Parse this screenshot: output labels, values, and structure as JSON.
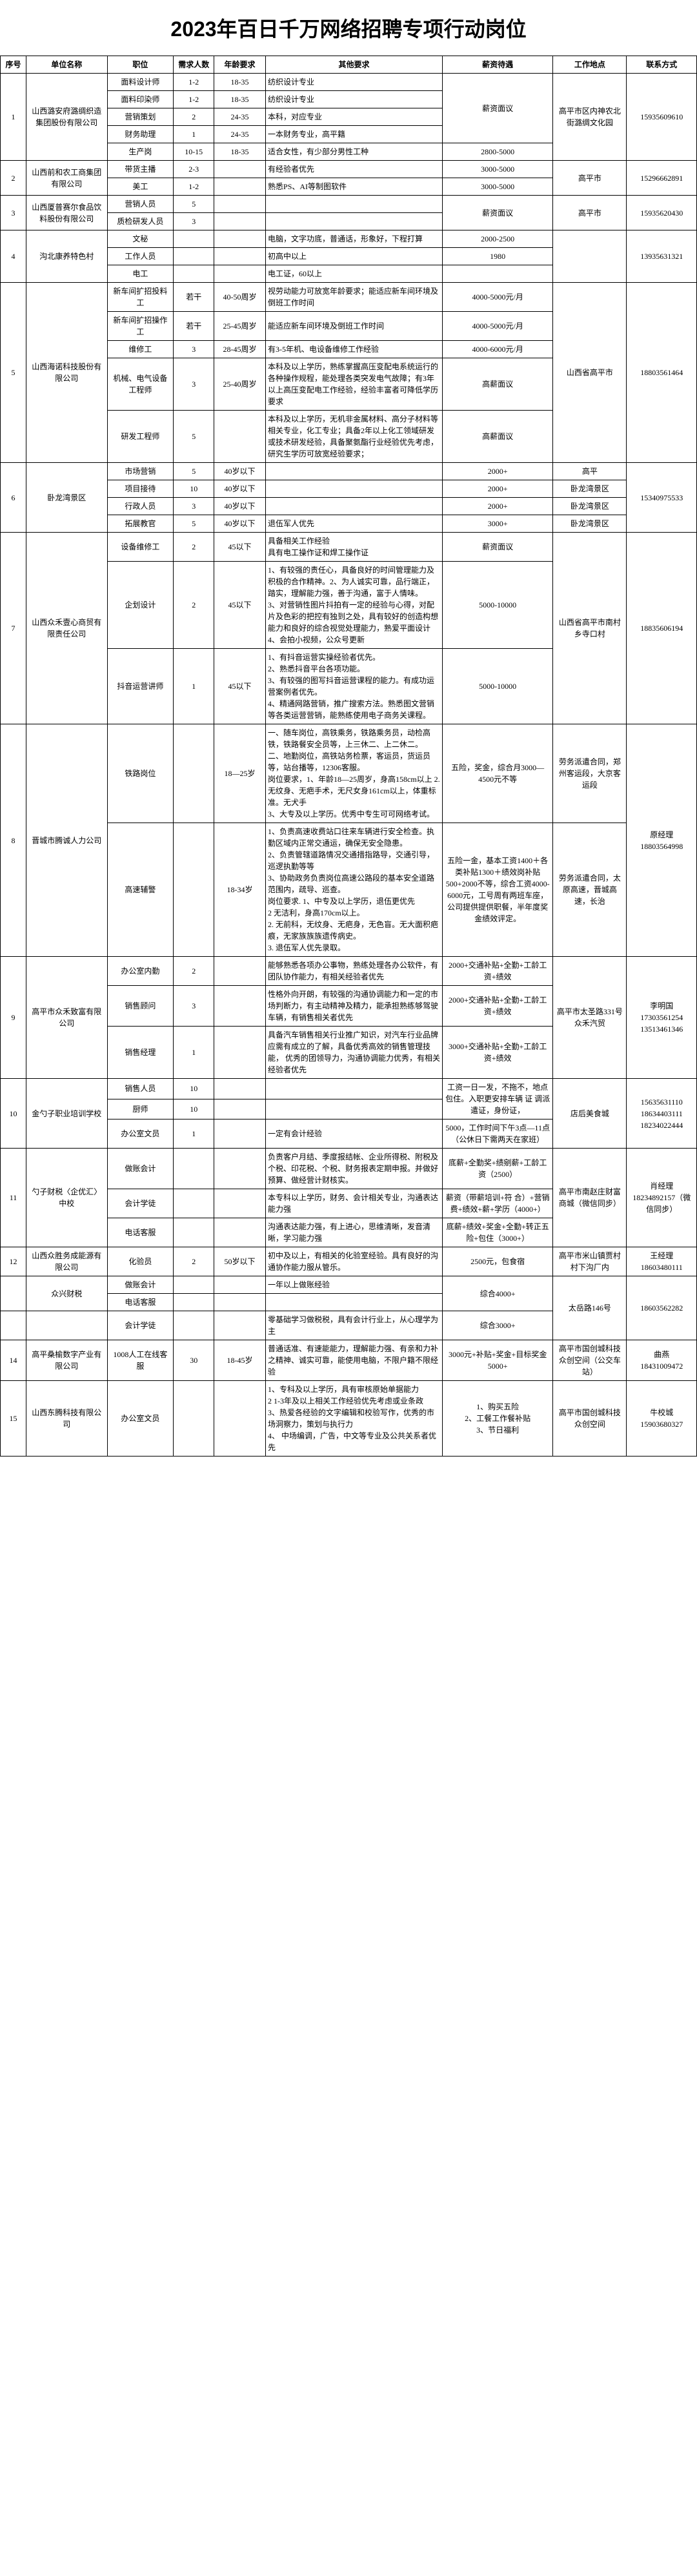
{
  "title": "2023年百日千万网络招聘专项行动岗位",
  "headers": {
    "seq": "序号",
    "company": "单位名称",
    "position": "职位",
    "count": "需求人数",
    "age": "年龄要求",
    "other": "其他要求",
    "salary": "薪资待遇",
    "location": "工作地点",
    "contact": "联系方式"
  },
  "rows": [
    {
      "seq": "1",
      "company": "山西潞安府潞绸织造集团股份有限公司",
      "position": "面料设计师",
      "count": "1-2",
      "age": "18-35",
      "other": "纺织设计专业",
      "salary": "薪资面议",
      "location": "高平市区内神农北街潞绸文化园",
      "contact": "15935609610"
    },
    {
      "position": "面料印染师",
      "count": "1-2",
      "age": "18-35",
      "other": "纺织设计专业"
    },
    {
      "position": "营销策划",
      "count": "2",
      "age": "24-35",
      "other": "本科，对应专业"
    },
    {
      "position": "财务助理",
      "count": "1",
      "age": "24-35",
      "other": "一本财务专业，高平籍"
    },
    {
      "position": "生产岗",
      "count": "10-15",
      "age": "18-35",
      "other": "适合女性，有少部分男性工种",
      "salary": "2800-5000"
    },
    {
      "seq": "2",
      "company": "山西前和农工商集团有限公司",
      "position": "带货主播",
      "count": "2-3",
      "age": "",
      "other": "有经验者优先",
      "salary": "3000-5000",
      "location": "高平市",
      "contact": "15296662891"
    },
    {
      "position": "美工",
      "count": "1-2",
      "age": "",
      "other": "熟悉PS、AI等制图软件",
      "salary": "3000-5000"
    },
    {
      "seq": "3",
      "company": "山西厦普赛尔食品饮料股份有限公司",
      "position": "营销人员",
      "count": "5",
      "age": "",
      "other": "",
      "salary": "薪资面议",
      "location": "高平市",
      "contact": "15935620430"
    },
    {
      "position": "质检研发人员",
      "count": "3",
      "age": "",
      "other": ""
    },
    {
      "seq": "4",
      "company": "沟北康养特色村",
      "position": "文秘",
      "count": "",
      "age": "",
      "other": "电脑，文字功底，普通话，形象好，下程打算",
      "salary": "2000-2500",
      "location": "",
      "contact": "13935631321"
    },
    {
      "position": "工作人员",
      "count": "",
      "age": "",
      "other": "初高中以上",
      "salary": "1980"
    },
    {
      "position": "电工",
      "count": "",
      "age": "",
      "other": "电工证，60以上",
      "salary": ""
    },
    {
      "seq": "5",
      "company": "山西海诺科技股份有限公司",
      "position": "新车间扩招投料工",
      "count": "若干",
      "age": "40-50周岁",
      "other": "视劳动能力可放宽年龄要求；能适应新车间环境及倒班工作时间",
      "salary": "4000-5000元/月",
      "location": "山西省高平市",
      "contact": "18803561464"
    },
    {
      "position": "新车间扩招操作工",
      "count": "若干",
      "age": "25-45周岁",
      "other": "能适应新车间环境及倒班工作时间",
      "salary": "4000-5000元/月"
    },
    {
      "position": "维修工",
      "count": "3",
      "age": "28-45周岁",
      "other": "有3-5年机、电设备维修工作经验",
      "salary": "4000-6000元/月"
    },
    {
      "position": "机械、电气设备工程师",
      "count": "3",
      "age": "25-40周岁",
      "other": "本科及以上学历，熟练掌握高压变配电系统运行的各种操作规程，能处理各类突发电气故障；有3年以上高压变配电工作经验，经验丰富者可降低学历要求",
      "salary": "高薪面议"
    },
    {
      "position": "研发工程师",
      "count": "5",
      "age": "",
      "other": "本科及以上学历，无机非金属材料、高分子材料等相关专业，化工专业；具备2年以上化工领域研发或技术研发经验，具备聚氨酯行业经验优先考虑，研究生学历可放宽经验要求；",
      "salary": "高薪面议"
    },
    {
      "seq": "6",
      "company": "卧龙湾景区",
      "position": "市场营销",
      "count": "5",
      "age": "40岁以下",
      "other": "",
      "salary": "2000+",
      "location": "高平",
      "contact": "15340975533"
    },
    {
      "position": "项目接待",
      "count": "10",
      "age": "40岁以下",
      "other": "",
      "salary": "2000+",
      "location": "卧龙湾景区"
    },
    {
      "position": "行政人员",
      "count": "3",
      "age": "40岁以下",
      "other": "",
      "salary": "2000+",
      "location": "卧龙湾景区"
    },
    {
      "position": "拓展教官",
      "count": "5",
      "age": "40岁以下",
      "other": "退伍军人优先",
      "salary": "3000+",
      "location": "卧龙湾景区"
    },
    {
      "seq": "7",
      "company": "山西众禾壹心商贸有限责任公司",
      "position": "设备维修工",
      "count": "2",
      "age": "45以下",
      "other": "具备相关工作经验\\n具有电工操作证和焊工操作证",
      "salary": "薪资面议",
      "location": "山西省高平市南村乡寺口村",
      "contact": "18835606194"
    },
    {
      "position": "企划设计",
      "count": "2",
      "age": "45以下",
      "other": "1、有较强的责任心，具备良好的时间管理能力及积极的合作精神。2、为人诚实可靠，品行端正，踏实，理解能力强，善于沟通，富于人情味。\\n3、对营销性图片抖拍有一定的经验与心得，对配片及色彩的把控有独到之处，具有较好的创造构想能力和良好的综合视觉处理能力，熟爱平面设计\\n4、会拍小视频，公众号更新",
      "salary": "5000-10000"
    },
    {
      "position": "抖音运营讲师",
      "count": "1",
      "age": "45以下",
      "other": "1、有抖音运营实操经验者优先。\\n2、熟悉抖音平台各项功能。\\n3、有较强的图写抖音运营课程的能力。有成功运营案例者优先。\\n4、精通网路营销，推广搜索方法。熟悉图文营销\\n 等各类运营营销，能熟练使用电子商务关课程。",
      "salary": "5000-10000"
    },
    {
      "seq": "8",
      "company": "晋城市腾诚人力公司",
      "position": "铁路岗位",
      "count": "",
      "age": "18—25岁",
      "other": "一、随车岗位，高铁乘务，铁路乘务员，动检高铁，铁路餐安全员等，上三休二、上二休二。\\n二、地勤岗位，高铁站务检票，客运员，货运员等，站台播等，12306客服。\\n    岗位要求，1、年龄18—25周岁，身高158cm以上 2.无纹身、无疤手术，无尺女身161cm以上，体重标准。无犬手\\n 3、大专及以上学历。优秀中专生可可网络考试。",
      "salary": "五险，奖金，综合月3000— 4500元不等",
      "location": "劳务派遣合同，郑州客运段，大京客运段",
      "contact": "原经理\\n18803564998"
    },
    {
      "position": "高速辅警",
      "count": "",
      "age": "18-34岁",
      "other": "1、负责高速收费站口往来车辆进行安全检查。执勤区域内正常交通运，确保无安全隐患。\\n2、负责管辖道路情况交通措指路导，交通引导，巡逻执勤等等\\n3、协助政务负责岗位高速公路段的基本安全道路范围内，疏导、巡查。\\n   岗位要求. 1、中专及以上学历，退伍更优先\\n2 无洁利，身高170cm以上。\\n2. 无前科，无纹身、无疤身，无色盲。无大面积疤痕，无家族族族遗传病史。\\n3. 退伍军人优先录取。",
      "salary": "五险一金，基本工资1400＋各类补贴1300＋绩效岗补贴500+2000不等，综合工资4000-6000元，工号周有两班车座，公司提供提供职餐，半年度奖金绩效评定。",
      "location": "劳务派遣合同，太原高速，晋城高速，长治"
    },
    {
      "seq": "9",
      "company": "高平市众禾致富有限公司",
      "position": "办公室内勤",
      "count": "2",
      "age": "",
      "other": "能够熟悉各项办公事物，熟练处理各办公软件，有团队协作能力，有相关经验者优先",
      "salary": "2000+交通补贴+全勤+工龄工资+绩效",
      "location": "高平市太圣路331号众禾汽贸",
      "contact": "李明国\\n17303561254\\n13513461346"
    },
    {
      "position": "销售顾问",
      "count": "3",
      "age": "",
      "other": "性格外向开朗，有较强的沟通协调能力和一定的市场判断力，有主动精神及精力，能承担熟练够驾驶车辆，有销售相关者优先",
      "salary": "2000+交通补贴+全勤+工龄工资+绩效"
    },
    {
      "position": "销售经理",
      "count": "1",
      "age": "",
      "other": "具备汽车销售相关行业推广知识，对汽车行业品牌应需有成立的了解，具备优秀高效的销售管理技能， 优秀的团领导力，沟通协调能力优秀，有相关经验者优先",
      "salary": "3000+交通补贴+全勤+工龄工资+绩效"
    },
    {
      "seq": "10",
      "company": "金勺子职业培训学校",
      "position": "销售人员",
      "count": "10",
      "age": "",
      "other": "",
      "salary": "工资一日一发，不拖不，地点包住。入职更安排车辆 证 调派遣证，身份证，",
      "location": "店后美食城",
      "contact": "15635631110\\n18634403111\\n18234022444"
    },
    {
      "position": "厨师",
      "count": "10",
      "age": "",
      "other": ""
    },
    {
      "position": "办公室文员",
      "count": "1",
      "age": "",
      "other": "一定有会计经验",
      "salary": "5000，工作时间下午3点—11点（公休日下需两天在家班）"
    },
    {
      "seq": "11",
      "company": "勺子财税〈企优汇〉中校",
      "position": "做账会计",
      "count": "",
      "age": "",
      "other": "负责客户月结、季度报结帐、企业所得税、附税及个税、印花税、个税、财务报表定期申报。并做好预算、做经营计财核实。",
      "salary": "底薪+全勤奖+绩剜薪+工龄工资（2500）",
      "location": "高平市南赵庄财富商城（微信同步）",
      "contact": "肖经理\\n18234892157（微信同步）"
    },
    {
      "position": "会计学徒",
      "count": "",
      "age": "",
      "other": "本专科以上学历，财务、会计相关专业，沟通表达能力强",
      "salary": "薪资（带薪培训+符 合）+营销费+绩效+薪+学历（4000+）"
    },
    {
      "position": "电话客服",
      "count": "",
      "age": "",
      "other": "沟通表达能力强，有上进心，思维清晰，发音清晰，学习能力强",
      "salary": "底薪+绩效+奖金+全勤+转正五险+包住（3000+）"
    },
    {
      "seq": "12",
      "company": "山西众胜务成能源有限公司",
      "position": "化验员",
      "count": "2",
      "age": "50岁以下",
      "other": "初中及以上，有相关的化验室经验。具有良好的沟通协作能力服从管乐。",
      "salary": "2500元，包食宿",
      "location": "高平市米山镇贾村村下沟厂内",
      "contact": "王经理\\n18603480111"
    },
    {
      "seq": "",
      "company": "众兴财税",
      "position": "做账会计",
      "count": "",
      "age": "",
      "other": "一年以上做账经验",
      "salary": "综合4000+",
      "location": "太岳路146号",
      "contact": "18603562282"
    },
    {
      "position": "电话客服",
      "count": "",
      "age": "",
      "other": ""
    },
    {
      "seq": "",
      "company": "",
      "position": "会计学徒",
      "count": "",
      "age": "",
      "other": "零基础学习做税税，具有会计行业上，从心理学为主",
      "salary": "综合3000+"
    },
    {
      "seq": "14",
      "company": "高平桑榆数字产业有限公司",
      "position": "1008人工在线客服",
      "count": "30",
      "age": "18-45岁",
      "other": "普通话准、有速能能力，理解能力强、有亲和力补之精神、诚实可靠，能使用电脑，不限户籍不限经验",
      "salary": "3000元+补贴+奖金+目标奖金5000+",
      "location": "高平市国创城科技众创空间（公交车站）",
      "contact": "曲燕\\n18431009472"
    },
    {
      "seq": "15",
      "company": "山西东腾科技有限公司",
      "position": "办公室文员",
      "count": "",
      "age": "",
      "other": "1、专科及以上学历，具有审核原始单据能力\\n2 1-3年及以上相关工作经验优先考虑或业条政\\n3、热爱各经验的文字编辑和校验写作，优秀的市场洞察力，策划与执行力\\n4、 中场编调，广告，中文等专业及公共关系者优先",
      "salary": "1、购买五险\\n2、工餐工作餐补贴\\n3、节日福利",
      "location": "高平市国创城科技众创空间",
      "contact": "牛校城\\n15903680327"
    }
  ]
}
